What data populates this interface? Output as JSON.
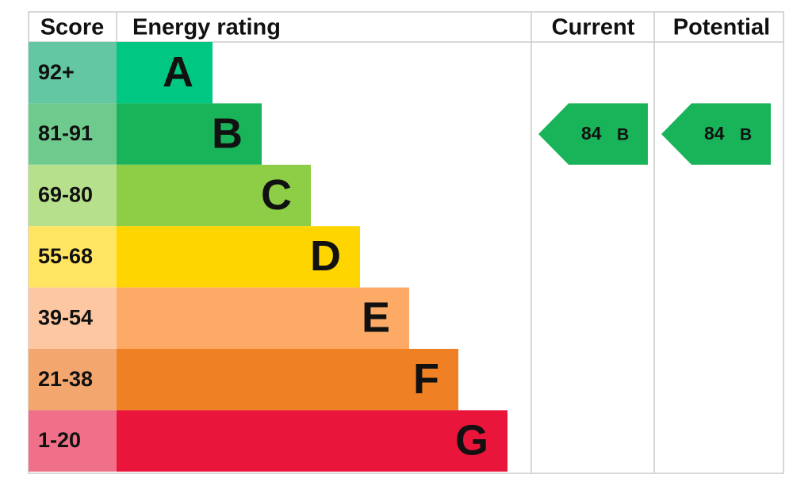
{
  "header": {
    "score": "Score",
    "rating": "Energy rating",
    "current": "Current",
    "potential": "Potential"
  },
  "rows": [
    {
      "score": "92+",
      "letter": "A",
      "color": "#00c781",
      "score_color": "#62c7a2"
    },
    {
      "score": "81-91",
      "letter": "B",
      "color": "#19b459",
      "score_color": "#6fcb8d"
    },
    {
      "score": "69-80",
      "letter": "C",
      "color": "#8dce46",
      "score_color": "#b6e08b"
    },
    {
      "score": "55-68",
      "letter": "D",
      "color": "#ffd500",
      "score_color": "#ffe562"
    },
    {
      "score": "39-54",
      "letter": "E",
      "color": "#fcaa65",
      "score_color": "#fdc8a1"
    },
    {
      "score": "21-38",
      "letter": "F",
      "color": "#ef8023",
      "score_color": "#f3a76f"
    },
    {
      "score": "1-20",
      "letter": "G",
      "color": "#e9153b",
      "score_color": "#ef7088"
    }
  ],
  "current": {
    "value": "84",
    "letter": "B"
  },
  "potential": {
    "value": "84",
    "letter": "B"
  }
}
